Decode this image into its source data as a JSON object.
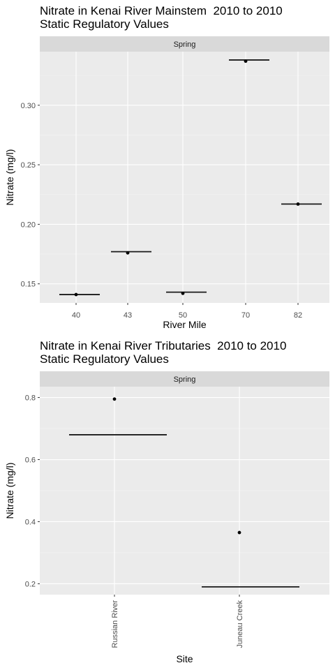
{
  "chart_data": [
    {
      "type": "scatter",
      "title_line1": "Nitrate in Kenai River Mainstem  2010 to 2010",
      "title_line2": "Static Regulatory Values",
      "facet": "Spring",
      "xlabel": "River Mile",
      "ylabel": "Nitrate (mg/l)",
      "categories": [
        "40",
        "43",
        "50",
        "70",
        "82"
      ],
      "y_ticks": [
        0.15,
        0.2,
        0.25,
        0.3
      ],
      "ylim": [
        0.134,
        0.345
      ],
      "points": [
        0.141,
        0.176,
        0.142,
        0.337,
        0.217
      ],
      "regulatory_values": [
        0.141,
        0.177,
        0.143,
        0.338,
        0.217
      ],
      "grid": true,
      "colors": {
        "panel": "#ebebeb",
        "strip": "#d9d9d9",
        "grid": "#ffffff",
        "mark": "#000000"
      }
    },
    {
      "type": "scatter",
      "title_line1": "Nitrate in Kenai River Tributaries  2010 to 2010",
      "title_line2": "Static Regulatory Values",
      "facet": "Spring",
      "xlabel": "Site",
      "ylabel": "Nitrate (mg/l)",
      "categories": [
        "Russian River",
        "Juneau Creek"
      ],
      "y_ticks": [
        0.2,
        0.4,
        0.6,
        0.8
      ],
      "ylim": [
        0.165,
        0.835
      ],
      "points": [
        0.795,
        0.365
      ],
      "regulatory_values": [
        0.68,
        0.19
      ],
      "grid": true,
      "colors": {
        "panel": "#ebebeb",
        "strip": "#d9d9d9",
        "grid": "#ffffff",
        "mark": "#000000"
      }
    }
  ]
}
